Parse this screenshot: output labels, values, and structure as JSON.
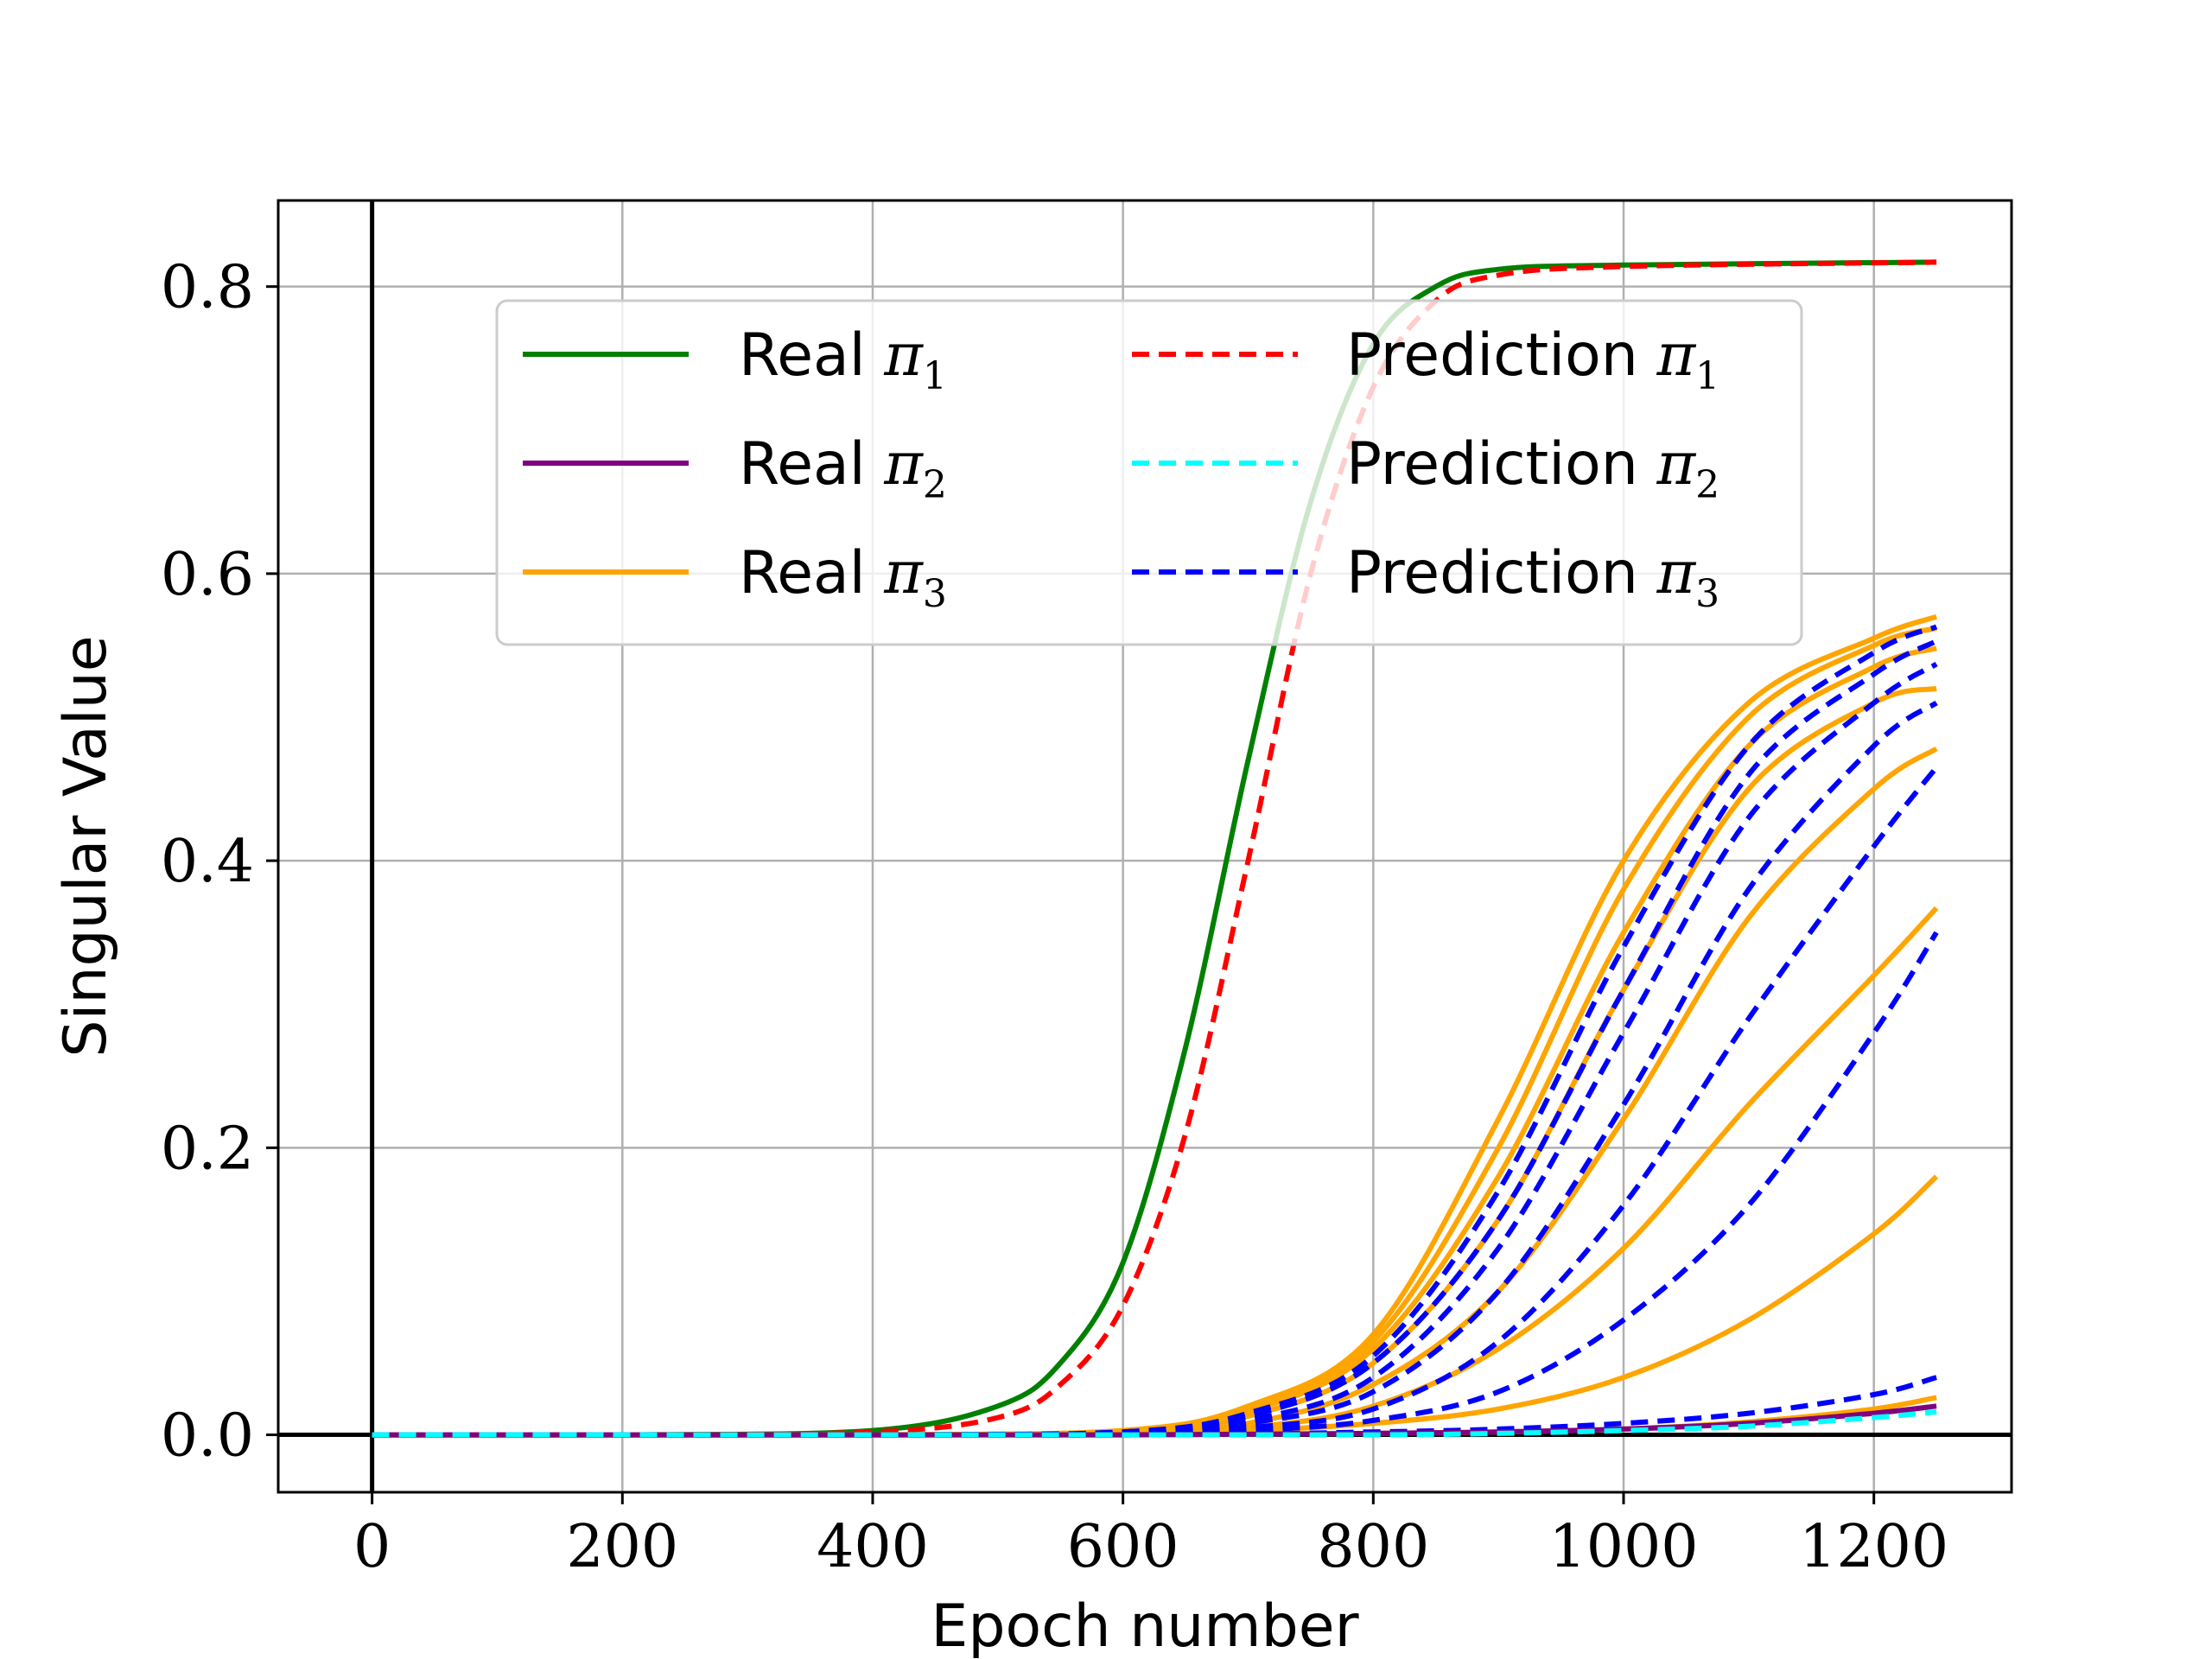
{
  "chart_data": {
    "type": "line",
    "xlabel": "Epoch number",
    "ylabel": "Singular Value",
    "xlim": [
      -75,
      1310
    ],
    "ylim": [
      -0.04,
      0.86
    ],
    "xticks": [
      0,
      200,
      400,
      600,
      800,
      1000,
      1200
    ],
    "yticks": [
      0.0,
      0.2,
      0.4,
      0.6,
      0.8
    ],
    "xtick_labels": [
      "0",
      "200",
      "400",
      "600",
      "800",
      "1000",
      "1200"
    ],
    "ytick_labels": [
      "0.0",
      "0.2",
      "0.4",
      "0.6",
      "0.8"
    ],
    "grid": true,
    "legend_position": "upper-center",
    "reference_lines": [
      {
        "orientation": "vertical",
        "value": 0
      },
      {
        "orientation": "horizontal",
        "value": 0
      }
    ],
    "series": [
      {
        "name": "Real π1",
        "group": "real_pi1",
        "color": "#008000",
        "style": "solid",
        "x": [
          0,
          200,
          400,
          500,
          550,
          600,
          650,
          700,
          750,
          800,
          850,
          900,
          1000,
          1250
        ],
        "y": [
          0.0,
          0.0,
          0.003,
          0.02,
          0.05,
          0.12,
          0.27,
          0.47,
          0.65,
          0.76,
          0.8,
          0.812,
          0.815,
          0.817
        ]
      },
      {
        "name": "Prediction π1",
        "group": "pred_pi1",
        "color": "#ff0000",
        "style": "dashed",
        "x": [
          0,
          200,
          400,
          500,
          550,
          600,
          650,
          700,
          750,
          800,
          850,
          900,
          1000,
          1250
        ],
        "y": [
          0.0,
          0.0,
          0.002,
          0.012,
          0.035,
          0.09,
          0.21,
          0.4,
          0.6,
          0.73,
          0.79,
          0.808,
          0.814,
          0.817
        ]
      },
      {
        "name": "Real π3",
        "group": "real_pi3",
        "color": "#ffa500",
        "style": "solid",
        "x": [
          0,
          400,
          600,
          700,
          800,
          900,
          1000,
          1100,
          1200,
          1250
        ],
        "y": [
          0.0,
          0.0,
          0.003,
          0.02,
          0.07,
          0.22,
          0.4,
          0.51,
          0.555,
          0.57
        ]
      },
      {
        "name": "",
        "group": "real_pi3",
        "color": "#ffa500",
        "style": "solid",
        "x": [
          0,
          400,
          600,
          700,
          800,
          900,
          1000,
          1100,
          1200,
          1250
        ],
        "y": [
          0.0,
          0.0,
          0.003,
          0.018,
          0.065,
          0.2,
          0.38,
          0.5,
          0.55,
          0.562
        ]
      },
      {
        "name": "",
        "group": "real_pi3",
        "color": "#ffa500",
        "style": "solid",
        "x": [
          0,
          400,
          600,
          700,
          800,
          900,
          1000,
          1100,
          1200,
          1250
        ],
        "y": [
          0.0,
          0.0,
          0.002,
          0.016,
          0.06,
          0.18,
          0.35,
          0.48,
          0.535,
          0.548
        ]
      },
      {
        "name": "",
        "group": "real_pi3",
        "color": "#ffa500",
        "style": "solid",
        "x": [
          0,
          400,
          600,
          700,
          800,
          900,
          1000,
          1100,
          1200,
          1250
        ],
        "y": [
          0.0,
          0.0,
          0.002,
          0.013,
          0.05,
          0.15,
          0.31,
          0.45,
          0.51,
          0.52
        ]
      },
      {
        "name": "",
        "group": "real_pi3",
        "color": "#ffa500",
        "style": "solid",
        "x": [
          0,
          400,
          600,
          700,
          800,
          900,
          1000,
          1100,
          1200,
          1250
        ],
        "y": [
          0.0,
          0.0,
          0.002,
          0.008,
          0.035,
          0.1,
          0.22,
          0.36,
          0.45,
          0.478
        ]
      },
      {
        "name": "",
        "group": "real_pi3",
        "color": "#ffa500",
        "style": "solid",
        "x": [
          0,
          400,
          600,
          700,
          800,
          900,
          1000,
          1100,
          1200,
          1250
        ],
        "y": [
          0.0,
          0.0,
          0.001,
          0.005,
          0.02,
          0.06,
          0.13,
          0.23,
          0.32,
          0.367
        ]
      },
      {
        "name": "",
        "group": "real_pi3",
        "color": "#ffa500",
        "style": "solid",
        "x": [
          0,
          400,
          600,
          700,
          800,
          900,
          1000,
          1100,
          1200,
          1250
        ],
        "y": [
          0.0,
          0.0,
          0.001,
          0.003,
          0.008,
          0.018,
          0.04,
          0.08,
          0.14,
          0.18
        ]
      },
      {
        "name": "",
        "group": "real_pi3",
        "color": "#ffa500",
        "style": "solid",
        "x": [
          0,
          600,
          800,
          900,
          1000,
          1100,
          1200,
          1250
        ],
        "y": [
          0.0,
          0.0,
          0.001,
          0.002,
          0.004,
          0.009,
          0.018,
          0.026
        ]
      },
      {
        "name": "Prediction π3",
        "group": "pred_pi3",
        "color": "#0000ff",
        "style": "dashed",
        "x": [
          0,
          400,
          600,
          700,
          800,
          900,
          1000,
          1100,
          1200,
          1250
        ],
        "y": [
          0.0,
          0.0,
          0.002,
          0.015,
          0.055,
          0.17,
          0.34,
          0.48,
          0.545,
          0.563
        ]
      },
      {
        "name": "",
        "group": "pred_pi3",
        "color": "#0000ff",
        "style": "dashed",
        "x": [
          0,
          400,
          600,
          700,
          800,
          900,
          1000,
          1100,
          1200,
          1250
        ],
        "y": [
          0.0,
          0.0,
          0.002,
          0.013,
          0.05,
          0.15,
          0.31,
          0.46,
          0.53,
          0.553
        ]
      },
      {
        "name": "",
        "group": "pred_pi3",
        "color": "#0000ff",
        "style": "dashed",
        "x": [
          0,
          400,
          600,
          700,
          800,
          900,
          1000,
          1100,
          1200,
          1250
        ],
        "y": [
          0.0,
          0.0,
          0.001,
          0.01,
          0.04,
          0.13,
          0.28,
          0.43,
          0.51,
          0.537
        ]
      },
      {
        "name": "",
        "group": "pred_pi3",
        "color": "#0000ff",
        "style": "dashed",
        "x": [
          0,
          400,
          600,
          700,
          800,
          900,
          1000,
          1100,
          1200,
          1250
        ],
        "y": [
          0.0,
          0.0,
          0.001,
          0.008,
          0.03,
          0.1,
          0.23,
          0.38,
          0.48,
          0.51
        ]
      },
      {
        "name": "",
        "group": "pred_pi3",
        "color": "#0000ff",
        "style": "dashed",
        "x": [
          0,
          400,
          600,
          700,
          800,
          900,
          1000,
          1100,
          1200,
          1250
        ],
        "y": [
          0.0,
          0.0,
          0.001,
          0.005,
          0.018,
          0.065,
          0.16,
          0.29,
          0.41,
          0.465
        ]
      },
      {
        "name": "",
        "group": "pred_pi3",
        "color": "#0000ff",
        "style": "dashed",
        "x": [
          0,
          400,
          600,
          700,
          800,
          900,
          1000,
          1100,
          1200,
          1250
        ],
        "y": [
          0.0,
          0.0,
          0.0,
          0.003,
          0.01,
          0.03,
          0.08,
          0.16,
          0.28,
          0.35
        ]
      },
      {
        "name": "",
        "group": "pred_pi3",
        "color": "#0000ff",
        "style": "dashed",
        "x": [
          0,
          600,
          800,
          900,
          1000,
          1100,
          1200,
          1250
        ],
        "y": [
          0.0,
          0.0,
          0.002,
          0.004,
          0.008,
          0.015,
          0.028,
          0.04
        ]
      },
      {
        "name": "Real π2",
        "group": "real_pi2",
        "color": "#800080",
        "style": "solid",
        "x": [
          0,
          600,
          800,
          900,
          1000,
          1100,
          1200,
          1250
        ],
        "y": [
          0.0,
          0.0,
          0.001,
          0.002,
          0.004,
          0.008,
          0.015,
          0.02
        ]
      },
      {
        "name": "Prediction π2",
        "group": "pred_pi2",
        "color": "#00ffff",
        "style": "dashed",
        "x": [
          0,
          600,
          800,
          900,
          1000,
          1100,
          1200,
          1250
        ],
        "y": [
          0.0,
          0.0,
          0.0,
          0.001,
          0.003,
          0.006,
          0.012,
          0.016
        ]
      }
    ],
    "legend": [
      {
        "label": "Real",
        "sym": "π",
        "sub": "1",
        "color": "#008000",
        "style": "solid"
      },
      {
        "label": "Real",
        "sym": "π",
        "sub": "2",
        "color": "#800080",
        "style": "solid"
      },
      {
        "label": "Real",
        "sym": "π",
        "sub": "3",
        "color": "#ffa500",
        "style": "solid"
      },
      {
        "label": "Prediction",
        "sym": "π",
        "sub": "1",
        "color": "#ff0000",
        "style": "dashed"
      },
      {
        "label": "Prediction",
        "sym": "π",
        "sub": "2",
        "color": "#00ffff",
        "style": "dashed"
      },
      {
        "label": "Prediction",
        "sym": "π",
        "sub": "3",
        "color": "#0000ff",
        "style": "dashed"
      }
    ]
  }
}
